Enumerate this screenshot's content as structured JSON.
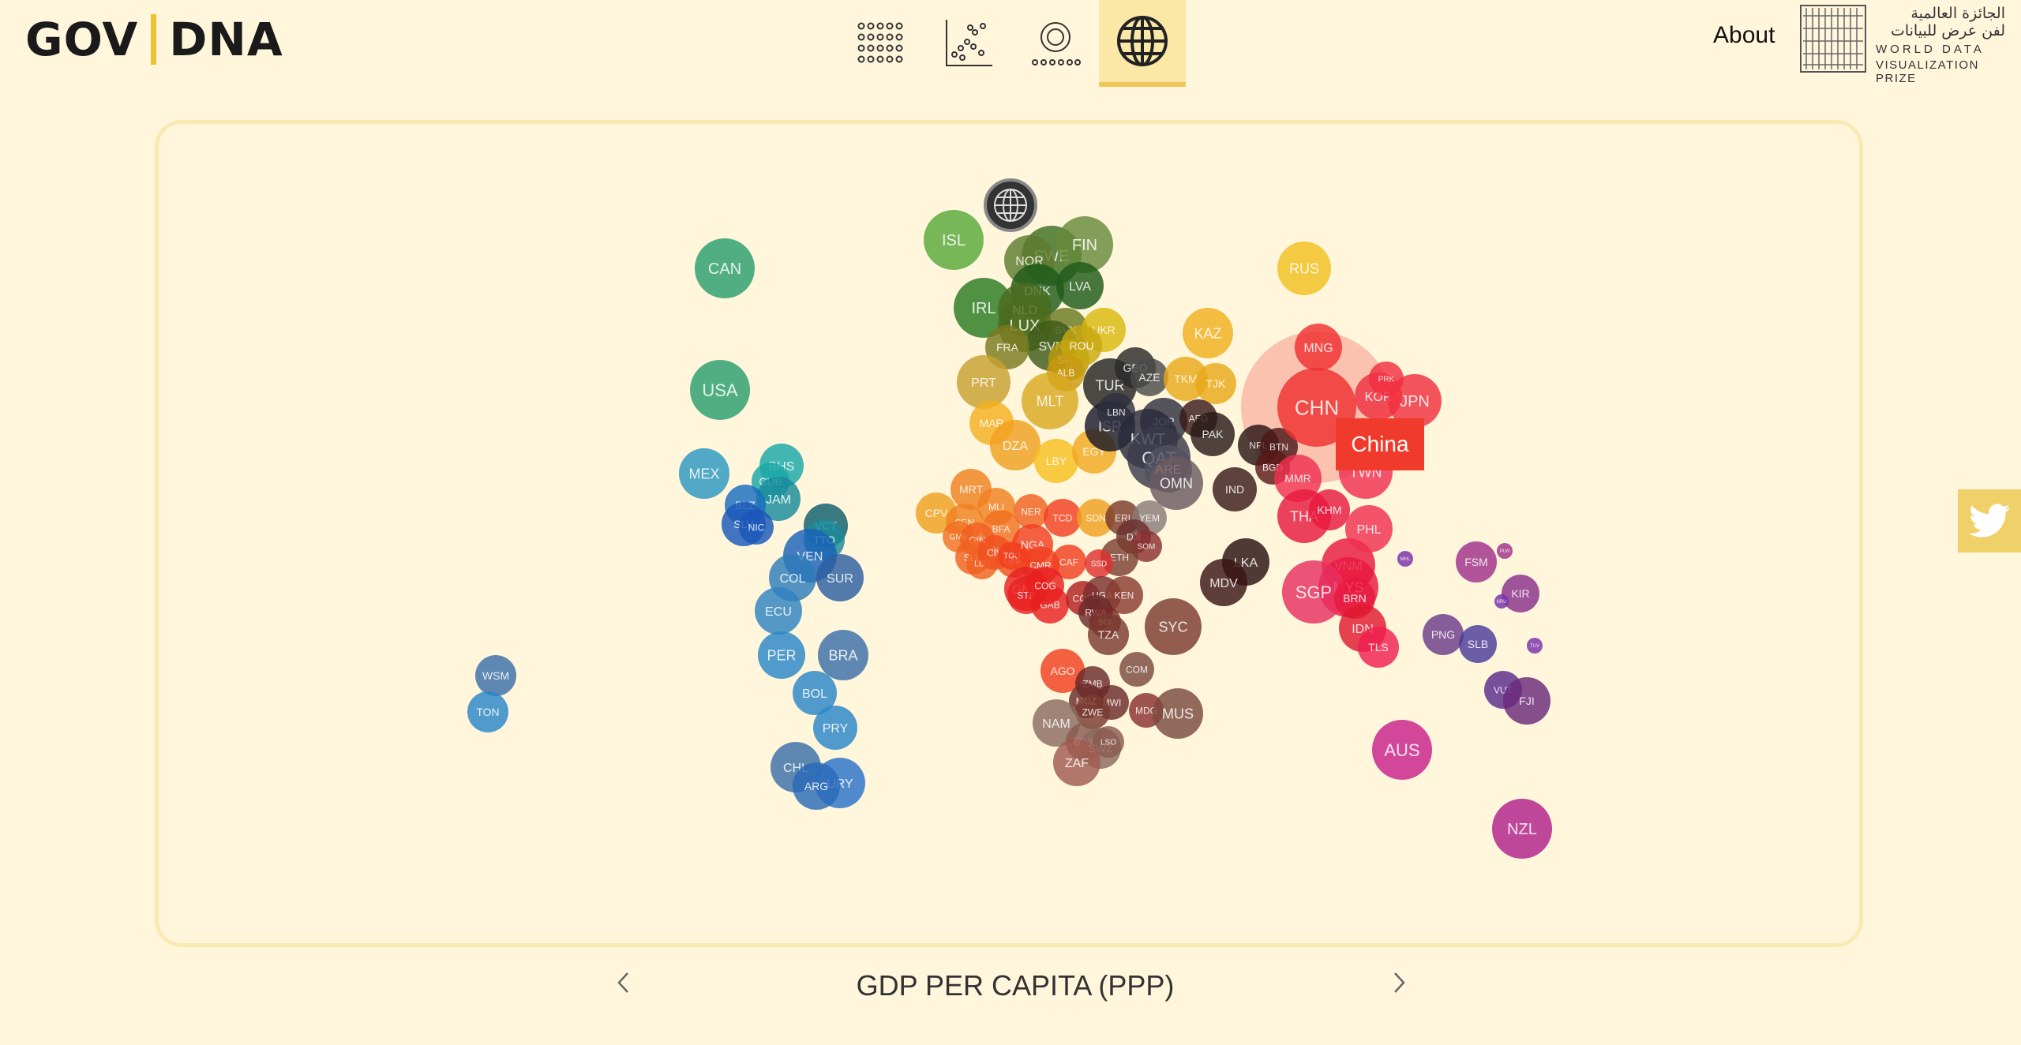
{
  "header": {
    "logo_left": "GOV",
    "logo_right": "DNA",
    "nav": [
      {
        "icon": "dot-matrix-icon",
        "active": false
      },
      {
        "icon": "scatter-plot-icon",
        "active": false
      },
      {
        "icon": "concentric-rings-icon",
        "active": false
      },
      {
        "icon": "globe-icon",
        "active": true
      }
    ],
    "about_label": "About",
    "prize": {
      "arabic_line1": "الجائزة العالمية",
      "arabic_line2": "لفن عرض للبيانات",
      "english_line1": "WORLD DATA",
      "english_line2": "VISUALIZATION PRIZE"
    }
  },
  "map": {
    "tooltip": "China",
    "countries": [
      {
        "code": "CAN",
        "color": "#2a9e6e"
      },
      {
        "code": "USA",
        "color": "#2a9e6e"
      },
      {
        "code": "MEX",
        "color": "#2c97c0"
      },
      {
        "code": "BHS",
        "color": "#1aa7a7"
      },
      {
        "code": "CUB",
        "color": "#1aa7a7"
      },
      {
        "code": "JAM",
        "color": "#178a9a"
      },
      {
        "code": "BLZ",
        "color": "#1a6cc0"
      },
      {
        "code": "SLV",
        "color": "#1a57b8"
      },
      {
        "code": "NIC",
        "color": "#1a57b8"
      },
      {
        "code": "VCT",
        "color": "#0d5d6a"
      },
      {
        "code": "TTO",
        "color": "#1a8a9a"
      },
      {
        "code": "VEN",
        "color": "#1a62b8"
      },
      {
        "code": "COL",
        "color": "#2e7bb8"
      },
      {
        "code": "SUR",
        "color": "#2c5fa0"
      },
      {
        "code": "ECU",
        "color": "#3183c0"
      },
      {
        "code": "PER",
        "color": "#2b86c8"
      },
      {
        "code": "BRA",
        "color": "#3a6fa8"
      },
      {
        "code": "BOL",
        "color": "#2b86c8"
      },
      {
        "code": "PRY",
        "color": "#2b86c8"
      },
      {
        "code": "CHL",
        "color": "#3a6fa8"
      },
      {
        "code": "URY",
        "color": "#2a72c8"
      },
      {
        "code": "ARG",
        "color": "#2a6ab8"
      },
      {
        "code": "WSM",
        "color": "#3a6fa8"
      },
      {
        "code": "TON",
        "color": "#2b86c8"
      },
      {
        "code": "ISL",
        "color": "#59a83a"
      },
      {
        "code": "SWE",
        "color": "#3e6e22"
      },
      {
        "code": "FIN",
        "color": "#668a3a"
      },
      {
        "code": "NOR",
        "color": "#5e7a2e"
      },
      {
        "code": "LVA",
        "color": "#1e5a1a"
      },
      {
        "code": "IRL",
        "color": "#2b7a22"
      },
      {
        "code": "DNK",
        "color": "#1e5a1a"
      },
      {
        "code": "NLD",
        "color": "#4a6b1e"
      },
      {
        "code": "LUX",
        "color": "#4a6b1e"
      },
      {
        "code": "SVK",
        "color": "#6a7a20"
      },
      {
        "code": "UKR",
        "color": "#d9b80e"
      },
      {
        "code": "SVN",
        "color": "#3e5a18"
      },
      {
        "code": "FRA",
        "color": "#7a7a20"
      },
      {
        "code": "SRB",
        "color": "#b89a10"
      },
      {
        "code": "ROU",
        "color": "#c8a810"
      },
      {
        "code": "ALB",
        "color": "#c89a10"
      },
      {
        "code": "PRT",
        "color": "#c8a030"
      },
      {
        "code": "MLT",
        "color": "#d8a820"
      },
      {
        "code": "TUR",
        "color": "#222222"
      },
      {
        "code": "GEO",
        "color": "#2a2a2a"
      },
      {
        "code": "AZE",
        "color": "#4a4a4a"
      },
      {
        "code": "TKM",
        "color": "#e8a818"
      },
      {
        "code": "TJK",
        "color": "#e8a818"
      },
      {
        "code": "KAZ",
        "color": "#f0b020"
      },
      {
        "code": "RUS",
        "color": "#f0c020"
      },
      {
        "code": "MAR",
        "color": "#f5b020"
      },
      {
        "code": "DZA",
        "color": "#f0a020"
      },
      {
        "code": "LBY",
        "color": "#f5c020"
      },
      {
        "code": "EGY",
        "color": "#f0a820"
      },
      {
        "code": "ISR",
        "color": "#1a1a2a"
      },
      {
        "code": "LBN",
        "color": "#303040"
      },
      {
        "code": "JOR",
        "color": "#303040"
      },
      {
        "code": "KWT",
        "color": "#2a2a3a"
      },
      {
        "code": "QAT",
        "color": "#3a3a4a"
      },
      {
        "code": "ARE",
        "color": "#505060"
      },
      {
        "code": "OMN",
        "color": "#6a5a60"
      },
      {
        "code": "AFG",
        "color": "#3a1a1a"
      },
      {
        "code": "PAK",
        "color": "#2a1a1a"
      },
      {
        "code": "IND",
        "color": "#3a1a1a"
      },
      {
        "code": "NPL",
        "color": "#2a1515"
      },
      {
        "code": "BTN",
        "color": "#4a1818"
      },
      {
        "code": "BGD",
        "color": "#5a1818"
      },
      {
        "code": "LKA",
        "color": "#2a1010"
      },
      {
        "code": "MDV",
        "color": "#3a1515"
      },
      {
        "code": "MNG",
        "color": "#f03030"
      },
      {
        "code": "CHN",
        "color": "#f03030"
      },
      {
        "code": "KOR",
        "color": "#f03040"
      },
      {
        "code": "PRK",
        "color": "#f03040"
      },
      {
        "code": "JPN",
        "color": "#f03040"
      },
      {
        "code": "TWN",
        "color": "#f03050"
      },
      {
        "code": "MMR",
        "color": "#f03050"
      },
      {
        "code": "THA",
        "color": "#e81840"
      },
      {
        "code": "KHM",
        "color": "#e81840"
      },
      {
        "code": "VNM",
        "color": "#e81840"
      },
      {
        "code": "PHL",
        "color": "#f03050"
      },
      {
        "code": "MYS",
        "color": "#e81840"
      },
      {
        "code": "SGP",
        "color": "#e83060"
      },
      {
        "code": "BRN",
        "color": "#e81840"
      },
      {
        "code": "IDN",
        "color": "#e01830"
      },
      {
        "code": "TLS",
        "color": "#f02050"
      },
      {
        "code": "AUS",
        "color": "#c8208a"
      },
      {
        "code": "NZL",
        "color": "#b0208a"
      },
      {
        "code": "PNG",
        "color": "#6a3a8a"
      },
      {
        "code": "SLB",
        "color": "#4a3a9a"
      },
      {
        "code": "VUT",
        "color": "#5a2a8a"
      },
      {
        "code": "FJI",
        "color": "#6a2a7a"
      },
      {
        "code": "FSM",
        "color": "#a0308a"
      },
      {
        "code": "KIR",
        "color": "#8a308a"
      },
      {
        "code": "PLW",
        "color": "#a0308a"
      },
      {
        "code": "MHL",
        "color": "#7a30aa"
      },
      {
        "code": "NRU",
        "color": "#7a30aa"
      },
      {
        "code": "TUV",
        "color": "#7a30aa"
      },
      {
        "code": "CPV",
        "color": "#f0a020"
      },
      {
        "code": "MRT",
        "color": "#f08020"
      },
      {
        "code": "SEN",
        "color": "#f08020"
      },
      {
        "code": "GMB",
        "color": "#f07020"
      },
      {
        "code": "MLI",
        "color": "#f08020"
      },
      {
        "code": "NER",
        "color": "#f06020"
      },
      {
        "code": "TCD",
        "color": "#f04020"
      },
      {
        "code": "SDN",
        "color": "#f0a020"
      },
      {
        "code": "ERI",
        "color": "#7a3a2a"
      },
      {
        "code": "YEM",
        "color": "#8a7a7a"
      },
      {
        "code": "DJI",
        "color": "#6a3030"
      },
      {
        "code": "SOM",
        "color": "#8a3030"
      },
      {
        "code": "ETH",
        "color": "#7a4030"
      },
      {
        "code": "BFA",
        "color": "#f07020"
      },
      {
        "code": "GIN",
        "color": "#f06020"
      },
      {
        "code": "SLE",
        "color": "#f06020"
      },
      {
        "code": "LBR",
        "color": "#f06020"
      },
      {
        "code": "CIV",
        "color": "#f05020"
      },
      {
        "code": "GHA",
        "color": "#f05020"
      },
      {
        "code": "TGO",
        "color": "#f04020"
      },
      {
        "code": "NGA",
        "color": "#f04020"
      },
      {
        "code": "CMR",
        "color": "#f04020"
      },
      {
        "code": "CAF",
        "color": "#f04020"
      },
      {
        "code": "SSD",
        "color": "#e03030"
      },
      {
        "code": "GNQ",
        "color": "#e82020"
      },
      {
        "code": "STP",
        "color": "#e82020"
      },
      {
        "code": "GAB",
        "color": "#e82020"
      },
      {
        "code": "COG",
        "color": "#e82020"
      },
      {
        "code": "COD",
        "color": "#b02020"
      },
      {
        "code": "UGA",
        "color": "#7a3030"
      },
      {
        "code": "KEN",
        "color": "#8a3a30"
      },
      {
        "code": "RWA",
        "color": "#6a2a2a"
      },
      {
        "code": "BDI",
        "color": "#7a2a2a"
      },
      {
        "code": "TZA",
        "color": "#7a3a30"
      },
      {
        "code": "SYC",
        "color": "#7a3a30"
      },
      {
        "code": "COM",
        "color": "#7a4a40"
      },
      {
        "code": "AGO",
        "color": "#f04020"
      },
      {
        "code": "ZMB",
        "color": "#6a2a2a"
      },
      {
        "code": "MWI",
        "color": "#6a2a2a"
      },
      {
        "code": "MOZ",
        "color": "#6a2a2a"
      },
      {
        "code": "ZWE",
        "color": "#7a3a30"
      },
      {
        "code": "MDG",
        "color": "#8a3030"
      },
      {
        "code": "MUS",
        "color": "#7a4a40"
      },
      {
        "code": "NAM",
        "color": "#8a6a60"
      },
      {
        "code": "BWA",
        "color": "#8a5a50"
      },
      {
        "code": "SWZ",
        "color": "#8a6a60"
      },
      {
        "code": "LSO",
        "color": "#8a5a50"
      },
      {
        "code": "ZAF",
        "color": "#a05a50"
      }
    ]
  },
  "footer": {
    "metric_label": "GDP PER CAPITA (PPP)"
  },
  "colors": {
    "background": "#fff6dc",
    "accent": "#f0c030",
    "tooltip": "#f03a2c"
  }
}
